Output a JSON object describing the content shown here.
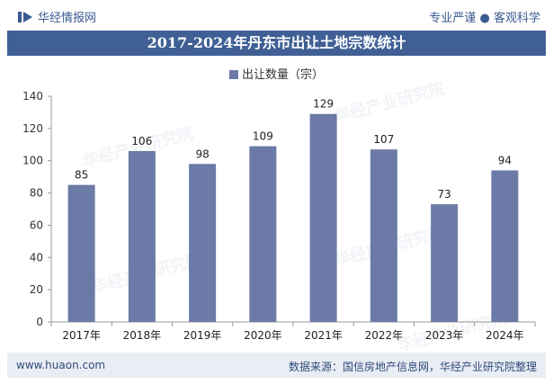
{
  "header": {
    "brand": "华经情报网",
    "tagline": "专业严谨 ● 客观科学"
  },
  "title": "2017-2024年丹东市出让土地宗数统计",
  "watermarks": [
    "华经产业研究院",
    "www.huaon.com"
  ],
  "footer": {
    "website": "www.huaon.com",
    "source": "数据来源：国信房地产信息网，华经产业研究院整理"
  },
  "colors": {
    "bar": "#6b7aa6",
    "title_bg": "#3f5f95"
  },
  "chart_data": {
    "type": "bar",
    "title": "2017-2024年丹东市出让土地宗数统计",
    "categories": [
      "2017年",
      "2018年",
      "2019年",
      "2020年",
      "2021年",
      "2022年",
      "2023年",
      "2024年"
    ],
    "series": [
      {
        "name": "出让数量（宗）",
        "values": [
          85,
          106,
          98,
          109,
          129,
          107,
          73,
          94
        ]
      }
    ],
    "ylim": [
      0,
      140
    ],
    "yticks": [
      0,
      20,
      40,
      60,
      80,
      100,
      120,
      140
    ],
    "legend": "top-center",
    "xlabel": "",
    "ylabel": ""
  }
}
